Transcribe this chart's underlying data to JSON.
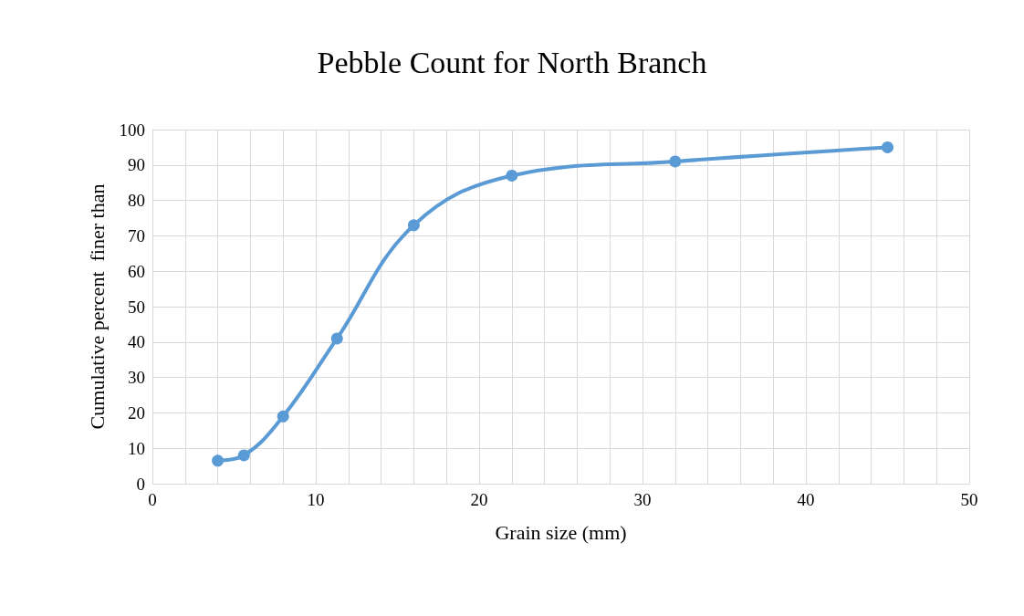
{
  "chart_data": {
    "type": "line",
    "title": "Pebble Count for North Branch",
    "xlabel": "Grain size (mm)",
    "ylabel": "Cumulative percent  finer than",
    "x": [
      4,
      5.6,
      8,
      11.3,
      16,
      22,
      32,
      45
    ],
    "series": [
      {
        "color": "#5b9bd5",
        "values": [
          6.5,
          8,
          19,
          41,
          73,
          87,
          91,
          95
        ]
      }
    ],
    "xlim": [
      0,
      50
    ],
    "xticks": [
      0,
      10,
      20,
      30,
      40,
      50
    ],
    "ylim": [
      0,
      100
    ],
    "yticks": [
      0,
      10,
      20,
      30,
      40,
      50,
      60,
      70,
      80,
      90,
      100
    ],
    "grid": true,
    "marker": "circle",
    "line_style": "solid"
  }
}
